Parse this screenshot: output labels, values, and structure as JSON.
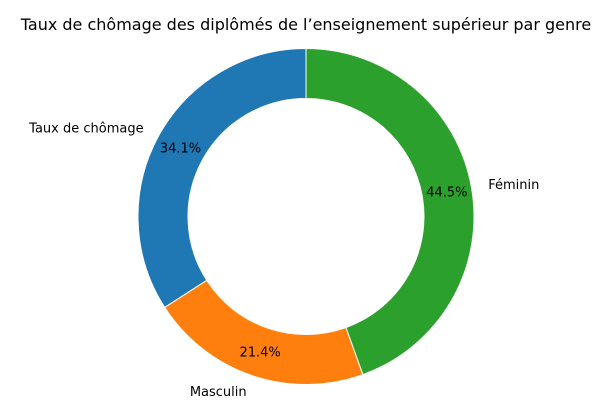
{
  "chart_data": {
    "type": "pie",
    "style": "donut",
    "title": "Taux de chômage des diplômés de l’enseignement supérieur par genre",
    "start_angle_deg": 90,
    "direction": "counterclockwise",
    "slices": [
      {
        "label": "Taux de chômage",
        "value": 34.1,
        "pct_label": "34.1%",
        "color": "#1f77b4"
      },
      {
        "label": "Masculin",
        "value": 21.4,
        "pct_label": "21.4%",
        "color": "#ff7f0e"
      },
      {
        "label": "Féminin",
        "value": 44.5,
        "pct_label": "44.5%",
        "color": "#2ca02c"
      }
    ]
  }
}
